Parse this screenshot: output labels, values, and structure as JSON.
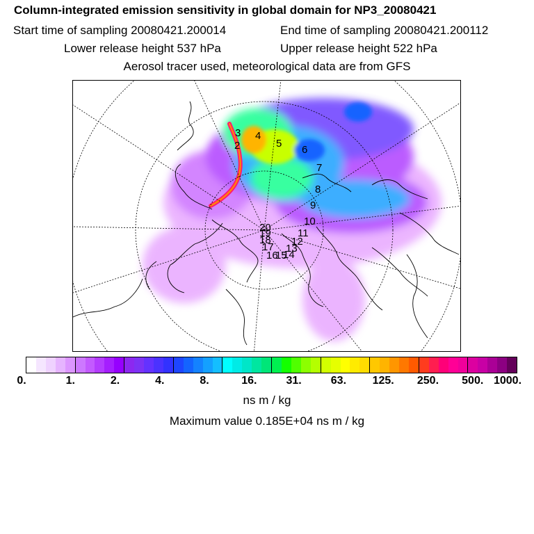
{
  "header": {
    "title": "Column-integrated emission sensitivity in global domain for NP3_20080421",
    "start_time": "Start time of sampling 20080421.200014",
    "end_time": "End time of sampling 20080421.200112",
    "lower_release": "Lower release height  537 hPa",
    "upper_release": "Upper release height  522 hPa",
    "note": "Aerosol tracer used, meteorological data are from GFS"
  },
  "map": {
    "projection": "north polar stereographic",
    "track_points": [
      {
        "label": "2"
      },
      {
        "label": "3"
      },
      {
        "label": "4"
      },
      {
        "label": "5"
      },
      {
        "label": "6"
      },
      {
        "label": "7"
      },
      {
        "label": "8"
      },
      {
        "label": "9"
      },
      {
        "label": "10"
      },
      {
        "label": "11"
      },
      {
        "label": "12"
      },
      {
        "label": "13"
      },
      {
        "label": "14"
      },
      {
        "label": "15"
      },
      {
        "label": "16"
      },
      {
        "label": "17"
      },
      {
        "label": "18"
      },
      {
        "label": "19"
      },
      {
        "label": "20"
      }
    ]
  },
  "colorbar": {
    "colors": [
      "#ffffff",
      "#f5e6ff",
      "#efd2ff",
      "#e6b4ff",
      "#dc96ff",
      "#cd78ff",
      "#c35aff",
      "#b43cff",
      "#a51eff",
      "#9600ff",
      "#8c28f0",
      "#7d32f5",
      "#6432ff",
      "#4b32ff",
      "#3232ff",
      "#1e46ff",
      "#1464ff",
      "#1482ff",
      "#14a0ff",
      "#14beff",
      "#00ffff",
      "#00ebe6",
      "#00e6c8",
      "#00e6a0",
      "#00e678",
      "#00f050",
      "#14ff00",
      "#50ff00",
      "#8cff00",
      "#b4ff00",
      "#d2ff00",
      "#e6ff00",
      "#ffff00",
      "#ffeb00",
      "#ffdc00",
      "#ffc800",
      "#ffb400",
      "#ff9600",
      "#ff7800",
      "#ff5a00",
      "#ff3c1e",
      "#ff1e50",
      "#ff0078",
      "#ff0096",
      "#f0009b",
      "#dc00a0",
      "#c800a5",
      "#aa0096",
      "#8c0082",
      "#64005a"
    ],
    "tick_labels": [
      "0.",
      "1.",
      "2.",
      "4.",
      "8.",
      "16.",
      "31.",
      "63.",
      "125.",
      "250.",
      "500.",
      "1000."
    ],
    "unit": "ns m / kg",
    "max_value_text": "Maximum value  0.185E+04 ns m / kg"
  }
}
